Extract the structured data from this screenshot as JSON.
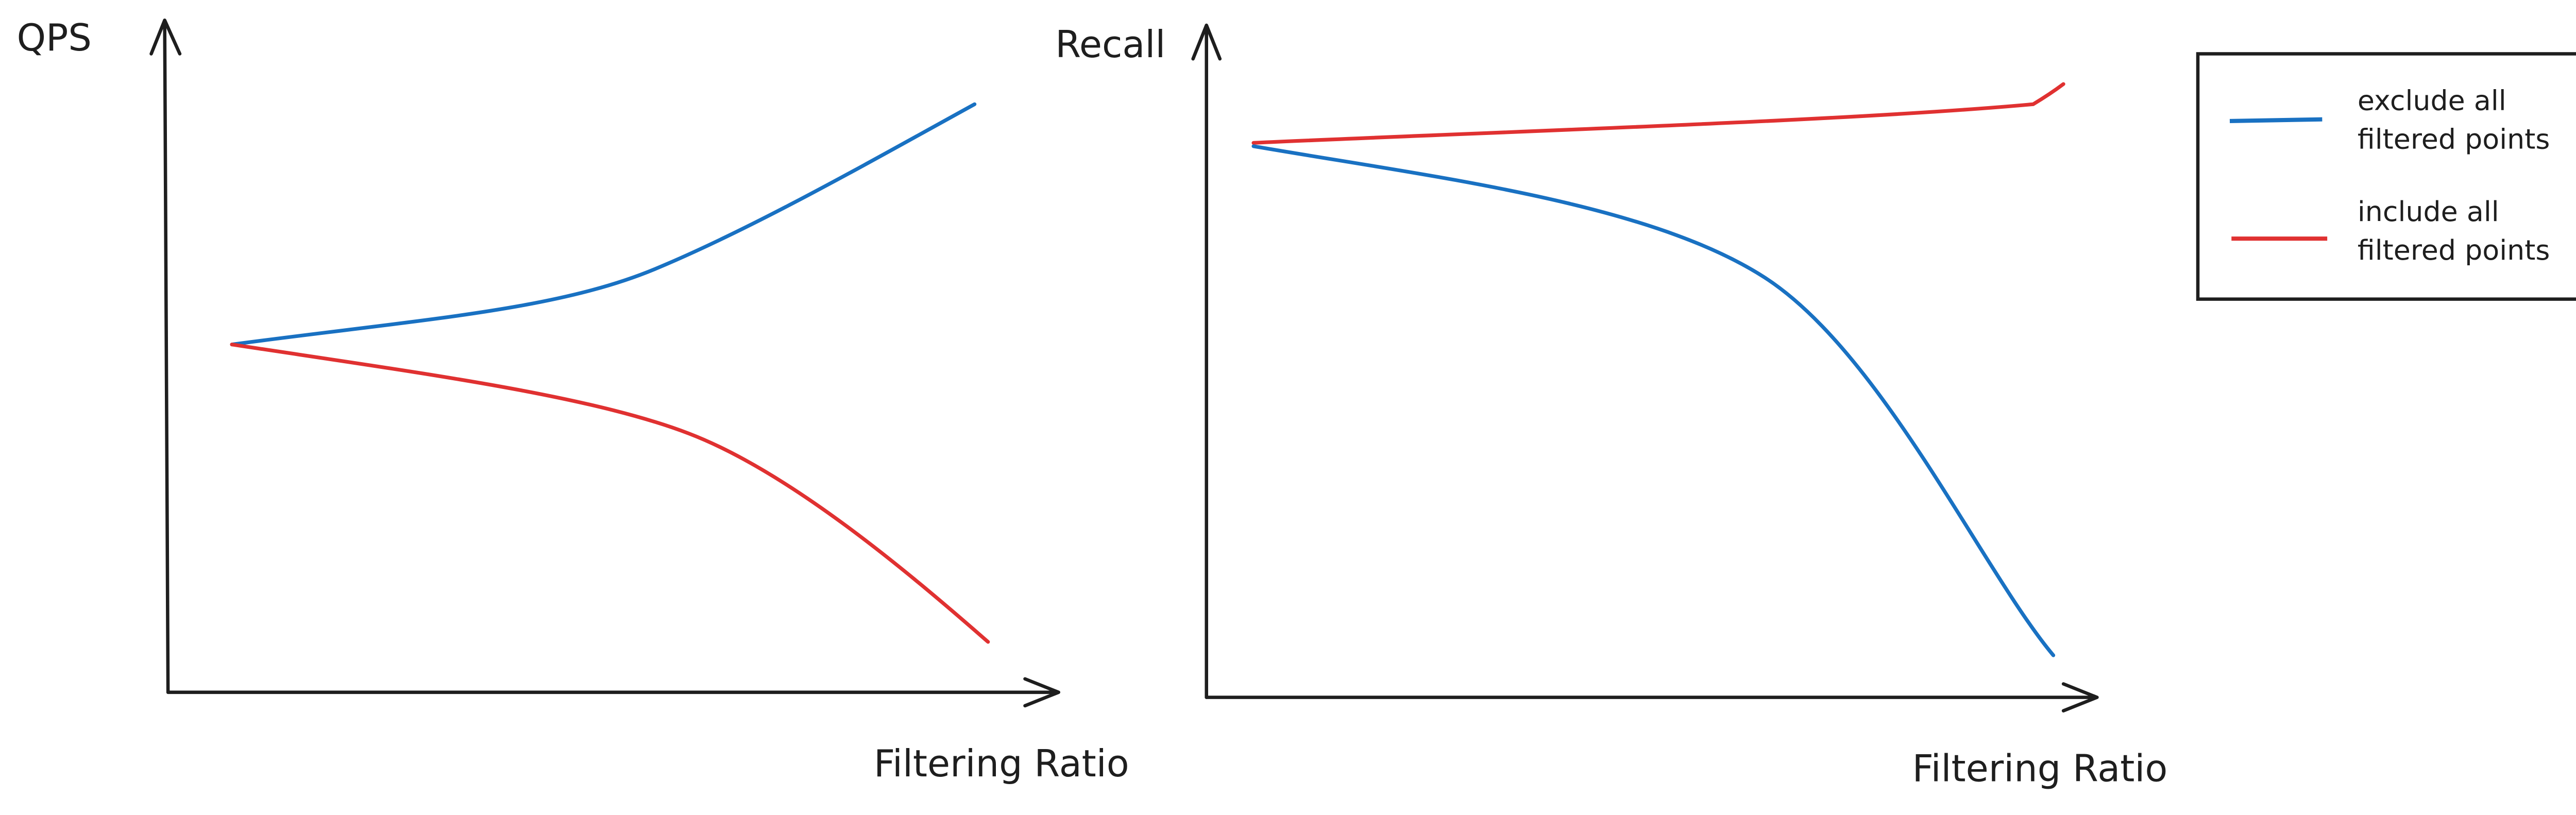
{
  "left_chart": {
    "y_label": "QPS",
    "x_label": "Filtering Ratio"
  },
  "right_chart": {
    "y_label": "Recall",
    "x_label": "Filtering Ratio"
  },
  "legend": {
    "entries": [
      {
        "lines": [
          "exclude all",
          "filtered points"
        ]
      },
      {
        "lines": [
          "include all",
          "filtered points"
        ]
      }
    ]
  }
}
